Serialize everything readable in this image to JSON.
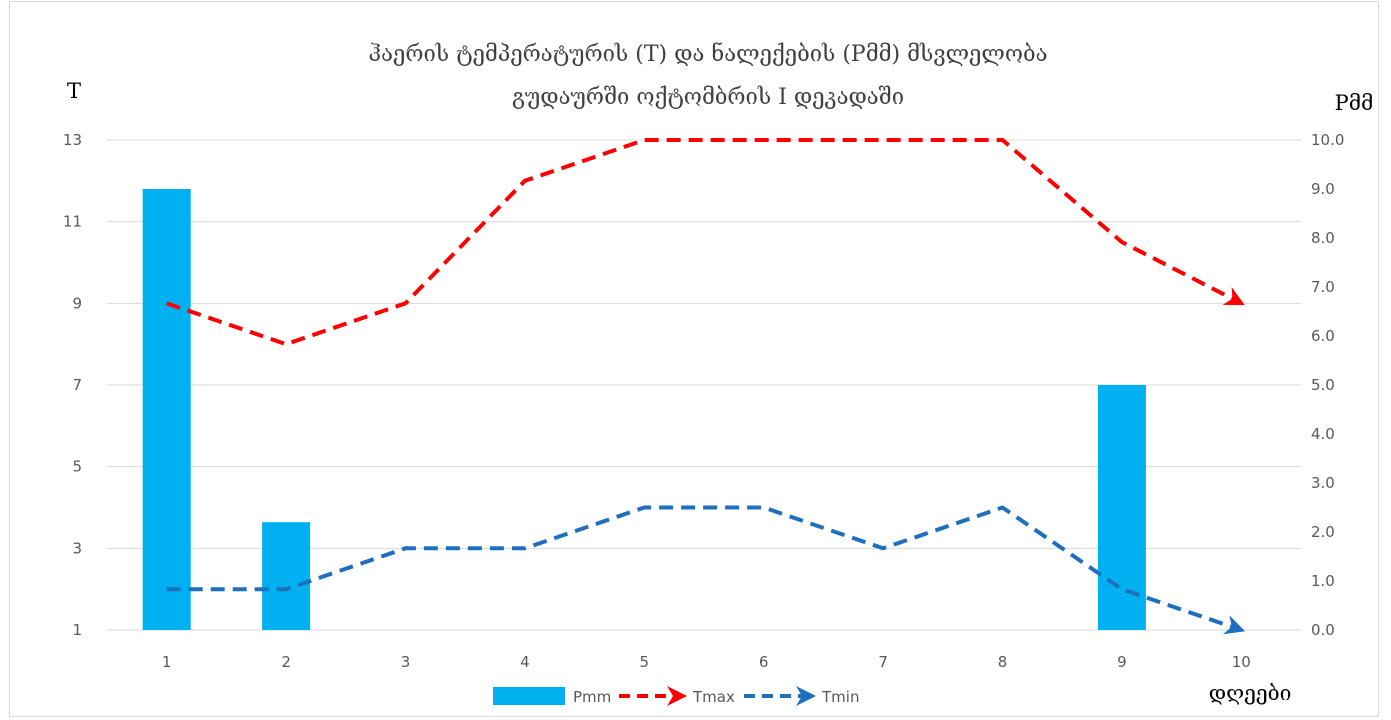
{
  "chart_data": {
    "type": "bar+line",
    "title_line1": "ჰაერის ტემპერატურის (T) და ნალექების (Pმმ)  მსვლელობა",
    "title_line2": "გუდაურში  ოქტომბრის I დეკადაში",
    "ylabel_left": "T",
    "ylabel_right": "Pმმ",
    "xlabel": "დღეები",
    "categories": [
      "1",
      "2",
      "3",
      "4",
      "5",
      "6",
      "7",
      "8",
      "9",
      "10"
    ],
    "y_left": {
      "range": [
        1,
        13
      ],
      "ticks": [
        "1",
        "3",
        "5",
        "7",
        "9",
        "11",
        "13"
      ]
    },
    "y_right": {
      "range": [
        0,
        10
      ],
      "ticks": [
        "0.0",
        "1.0",
        "2.0",
        "3.0",
        "4.0",
        "5.0",
        "6.0",
        "7.0",
        "8.0",
        "9.0",
        "10.0"
      ]
    },
    "series": [
      {
        "name": "Pmm",
        "type": "bar",
        "axis": "right",
        "color": "#00b0f0",
        "values": [
          9.0,
          2.2,
          0,
          0,
          0,
          0,
          0,
          0,
          5.0,
          0
        ]
      },
      {
        "name": "Tmax",
        "type": "line-dashed-arrow",
        "axis": "left",
        "color": "#ff0000",
        "values": [
          9,
          8,
          9,
          12,
          13,
          13,
          13,
          13,
          10.5,
          9
        ]
      },
      {
        "name": "Tmin",
        "type": "line-dashed-arrow",
        "axis": "left",
        "color": "#1f6fbf",
        "values": [
          2,
          2,
          3,
          3,
          4,
          4,
          3,
          4,
          2,
          1
        ]
      }
    ],
    "grid": true,
    "legend": "bottom"
  }
}
